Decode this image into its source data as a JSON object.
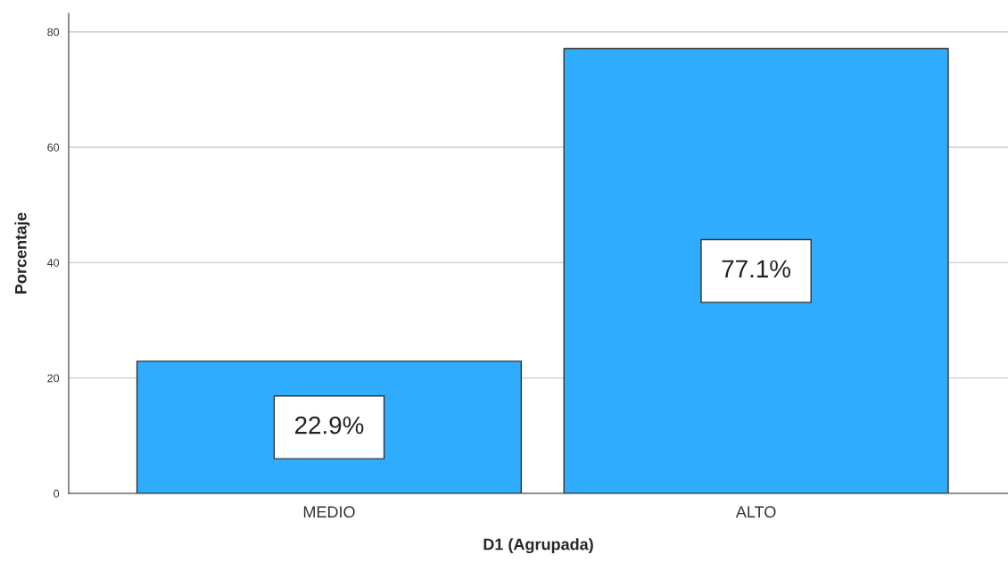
{
  "chart_data": {
    "type": "bar",
    "xlabel": "D1 (Agrupada)",
    "ylabel": "Porcentaje",
    "categories": [
      "MEDIO",
      "ALTO"
    ],
    "values": [
      22.9,
      77.1
    ],
    "value_labels": [
      "22.9%",
      "77.1%"
    ],
    "color": "#30acff",
    "ylim": [
      0,
      83.2
    ],
    "yticks": [
      0,
      20,
      40,
      60,
      80
    ],
    "grid": "y"
  }
}
